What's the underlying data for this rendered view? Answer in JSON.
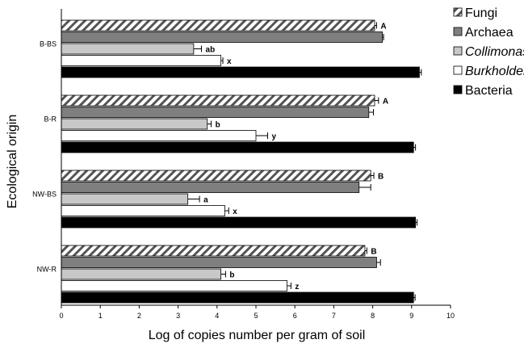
{
  "chart_data": {
    "type": "bar",
    "orientation": "horizontal",
    "xlabel": "Log of copies number per gram of soil",
    "ylabel": "Ecological origin",
    "xlim": [
      0,
      10
    ],
    "xticks": [
      "0",
      "1",
      "2",
      "3",
      "4",
      "5",
      "6",
      "7",
      "8",
      "9",
      "10"
    ],
    "categories": [
      "B-BS",
      "B-R",
      "NW-BS",
      "NW-R"
    ],
    "grid": false,
    "legend_position": "right",
    "series": [
      {
        "name": "Fungi",
        "pattern": "hatched",
        "color": "#555555",
        "values": [
          8.05,
          8.05,
          7.95,
          7.8
        ],
        "errors": [
          0.05,
          0.1,
          0.08,
          0.05
        ],
        "labels": [
          "A",
          "A",
          "B",
          "B"
        ]
      },
      {
        "name": "Archaea",
        "pattern": "solid",
        "color": "#7f7f7f",
        "values": [
          8.25,
          7.9,
          7.65,
          8.1
        ],
        "errors": [
          0.03,
          0.12,
          0.3,
          0.1
        ],
        "labels": [
          "",
          "",
          "",
          ""
        ]
      },
      {
        "name": "Collimonas",
        "italic": true,
        "pattern": "solid",
        "color": "#c8c8c8",
        "values": [
          3.4,
          3.75,
          3.25,
          4.1
        ],
        "errors": [
          0.2,
          0.1,
          0.3,
          0.12
        ],
        "labels": [
          "ab",
          "b",
          "a",
          "b"
        ]
      },
      {
        "name": "Burkholderia",
        "italic": true,
        "pattern": "solid",
        "color": "#ffffff",
        "values": [
          4.1,
          5.0,
          4.2,
          5.8
        ],
        "errors": [
          0.05,
          0.3,
          0.1,
          0.1
        ],
        "labels": [
          "x",
          "y",
          "x",
          "z"
        ]
      },
      {
        "name": "Bacteria",
        "pattern": "solid",
        "color": "#000000",
        "values": [
          9.2,
          9.05,
          9.1,
          9.05
        ],
        "errors": [
          0.05,
          0.05,
          0.04,
          0.04
        ],
        "labels": [
          "",
          "",
          "",
          ""
        ]
      }
    ]
  }
}
